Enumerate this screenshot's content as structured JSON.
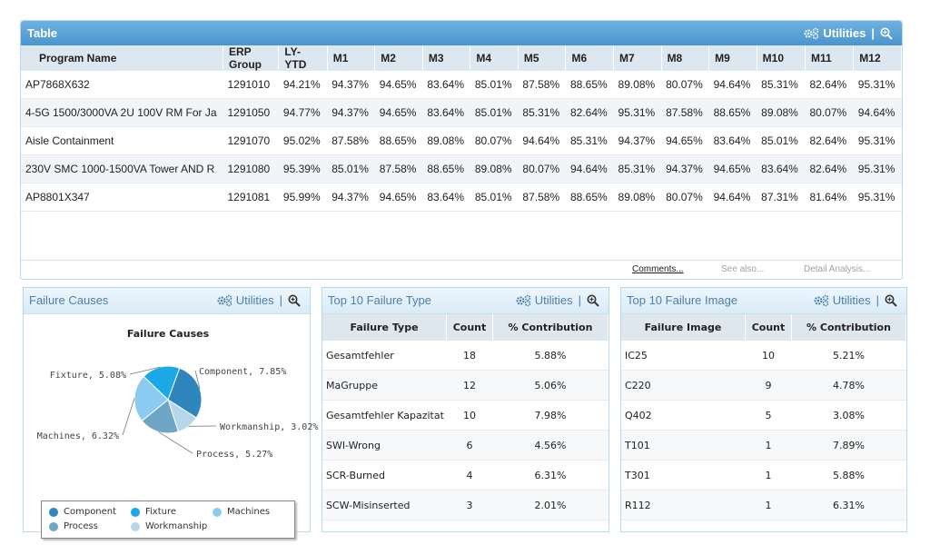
{
  "main": {
    "title": "Table",
    "utilities_label": "Utilities",
    "columns": [
      "Program Name",
      "ERP Group",
      "LY-YTD",
      "M1",
      "M2",
      "M3",
      "M4",
      "M5",
      "M6",
      "M7",
      "M8",
      "M9",
      "M10",
      "M11",
      "M12"
    ],
    "rows": [
      {
        "name": "AP7868X632",
        "erp": "1291010",
        "ly": "94.21%",
        "m": [
          "94.37%",
          "94.65%",
          "83.64%",
          "85.01%",
          "87.58%",
          "88.65%",
          "89.08%",
          "80.07%",
          "94.64%",
          "85.31%",
          "82.64%",
          "95.31%"
        ],
        "c": [
          "g",
          "lg",
          "r",
          "o",
          "o",
          "o",
          "o",
          "r",
          "g",
          "o",
          "r",
          "g"
        ]
      },
      {
        "name": "4-5G 1500/3000VA 2U 100V RM For Ja",
        "erp": "1291050",
        "ly": "94.77%",
        "m": [
          "94.37%",
          "94.65%",
          "83.64%",
          "85.01%",
          "85.31%",
          "82.64%",
          "95.31%",
          "87.58%",
          "88.65%",
          "89.08%",
          "80.07%",
          "94.64%"
        ],
        "c": [
          "g",
          "lg",
          "r",
          "o",
          "o",
          "r",
          "g",
          "o",
          "o",
          "o",
          "r",
          "g"
        ]
      },
      {
        "name": "Aisle Containment",
        "erp": "1291070",
        "ly": "95.02%",
        "m": [
          "87.58%",
          "88.65%",
          "89.08%",
          "80.07%",
          "94.64%",
          "85.31%",
          "94.37%",
          "94.65%",
          "83.64%",
          "85.01%",
          "82.64%",
          "95.31%"
        ],
        "c": [
          "o",
          "o",
          "o",
          "r",
          "g",
          "o",
          "g",
          "lg",
          "r",
          "o",
          "r",
          "g"
        ]
      },
      {
        "name": "230V SMC 1000-1500VA Tower AND R",
        "erp": "1291080",
        "ly": "95.39%",
        "m": [
          "85.01%",
          "87.58%",
          "88.65%",
          "89.08%",
          "80.07%",
          "94.64%",
          "85.31%",
          "94.37%",
          "94.65%",
          "83.64%",
          "82.64%",
          "95.31%"
        ],
        "c": [
          "o",
          "o",
          "o",
          "o",
          "r",
          "g",
          "o",
          "g",
          "lg",
          "r",
          "r",
          "g"
        ]
      },
      {
        "name": "AP8801X347",
        "erp": "1291081",
        "ly": "95.99%",
        "m": [
          "94.37%",
          "94.65%",
          "83.64%",
          "85.01%",
          "87.58%",
          "88.65%",
          "89.08%",
          "80.07%",
          "94.64%",
          "87.31%",
          "81.64%",
          "95.31%"
        ],
        "c": [
          "g",
          "lg",
          "r",
          "o",
          "o",
          "o",
          "o",
          "r",
          "g",
          "o",
          "r",
          "g"
        ]
      }
    ],
    "footer_links": [
      "Comments...",
      "See also...",
      "Detail Analysis..."
    ]
  },
  "failure_causes": {
    "title": "Failure Causes",
    "utilities_label": "Utilities",
    "chart_data": {
      "type": "pie",
      "title": "Failure Causes",
      "slices": [
        {
          "label": "Component",
          "value": 7.85,
          "color": "#2f86bd"
        },
        {
          "label": "Workmanship",
          "value": 3.02,
          "color": "#b6d7ea"
        },
        {
          "label": "Process",
          "value": 5.27,
          "color": "#6fa6c6"
        },
        {
          "label": "Machines",
          "value": 6.32,
          "color": "#8ccbf0"
        },
        {
          "label": "Fixture",
          "value": 5.08,
          "color": "#1aa8e6"
        }
      ],
      "data_labels": [
        "Component, 7.85%",
        "Workmanship, 3.02%",
        "Process, 5.27%",
        "Machines, 6.32%",
        "Fixture, 5.08%"
      ],
      "legend": [
        "Component",
        "Fixture",
        "Machines",
        "Process",
        "Workmanship"
      ],
      "legend_position": "bottom"
    }
  },
  "top10_type": {
    "title": "Top 10 Failure Type",
    "utilities_label": "Utilities",
    "columns": [
      "Failure Type",
      "Count",
      "% Contribution"
    ],
    "rows": [
      [
        "Gesamtfehler",
        "18",
        "5.88%"
      ],
      [
        "MaGruppe",
        "12",
        "5.06%"
      ],
      [
        "Gesamtfehler Kapazitat",
        "10",
        "7.98%"
      ],
      [
        "SWI-Wrong",
        "6",
        "4.56%"
      ],
      [
        "SCR-Burned",
        "4",
        "6.31%"
      ],
      [
        "SCW-Misinserted",
        "3",
        "2.01%"
      ]
    ]
  },
  "top10_image": {
    "title": "Top 10 Failure Image",
    "utilities_label": "Utilities",
    "columns": [
      "Failure Image",
      "Count",
      "% Contribution"
    ],
    "rows": [
      [
        "IC25",
        "10",
        "5.21%"
      ],
      [
        "C220",
        "9",
        "4.78%"
      ],
      [
        "Q402",
        "5",
        "3.08%"
      ],
      [
        "T101",
        "1",
        "7.89%"
      ],
      [
        "T301",
        "1",
        "5.88%"
      ],
      [
        "R112",
        "1",
        "6.31%"
      ]
    ]
  },
  "icons": {
    "utilities": "gears-icon",
    "zoom": "zoom-in-icon"
  }
}
